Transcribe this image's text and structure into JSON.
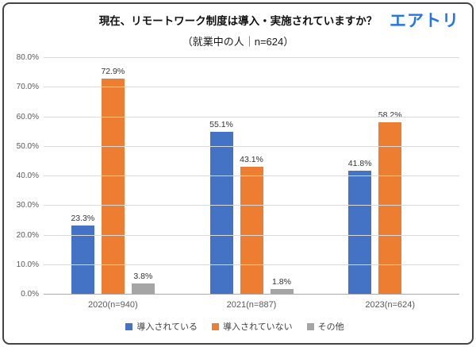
{
  "header": {
    "title": "現在、リモートワーク制度は導入・実施されていますか？",
    "subtitle": "（就業中の人｜n=624）",
    "logo": "エアトリ",
    "logo_color": "#2476E8"
  },
  "chart_data": {
    "type": "bar",
    "title": "現在、リモートワーク制度は導入・実施されていますか？",
    "subtitle": "（就業中の人｜n=624）",
    "categories": [
      "2020(n=940)",
      "2021(n=887)",
      "2023(n=624)"
    ],
    "series": [
      {
        "name": "導入されている",
        "color": "#4472C4",
        "values": [
          23.3,
          55.1,
          41.8
        ]
      },
      {
        "name": "導入されていない",
        "color": "#ED7D31",
        "values": [
          72.9,
          43.1,
          58.2
        ]
      },
      {
        "name": "その他",
        "color": "#A5A5A5",
        "values": [
          3.8,
          1.8,
          null
        ]
      }
    ],
    "ylabel": "",
    "xlabel": "",
    "ylim": [
      0,
      80
    ],
    "ytick_step": 10,
    "ytick_labels": [
      "0.0%",
      "10.0%",
      "20.0%",
      "30.0%",
      "40.0%",
      "50.0%",
      "60.0%",
      "70.0%",
      "80.0%"
    ],
    "grid": true,
    "legend_position": "bottom",
    "value_label_suffix": "%"
  }
}
